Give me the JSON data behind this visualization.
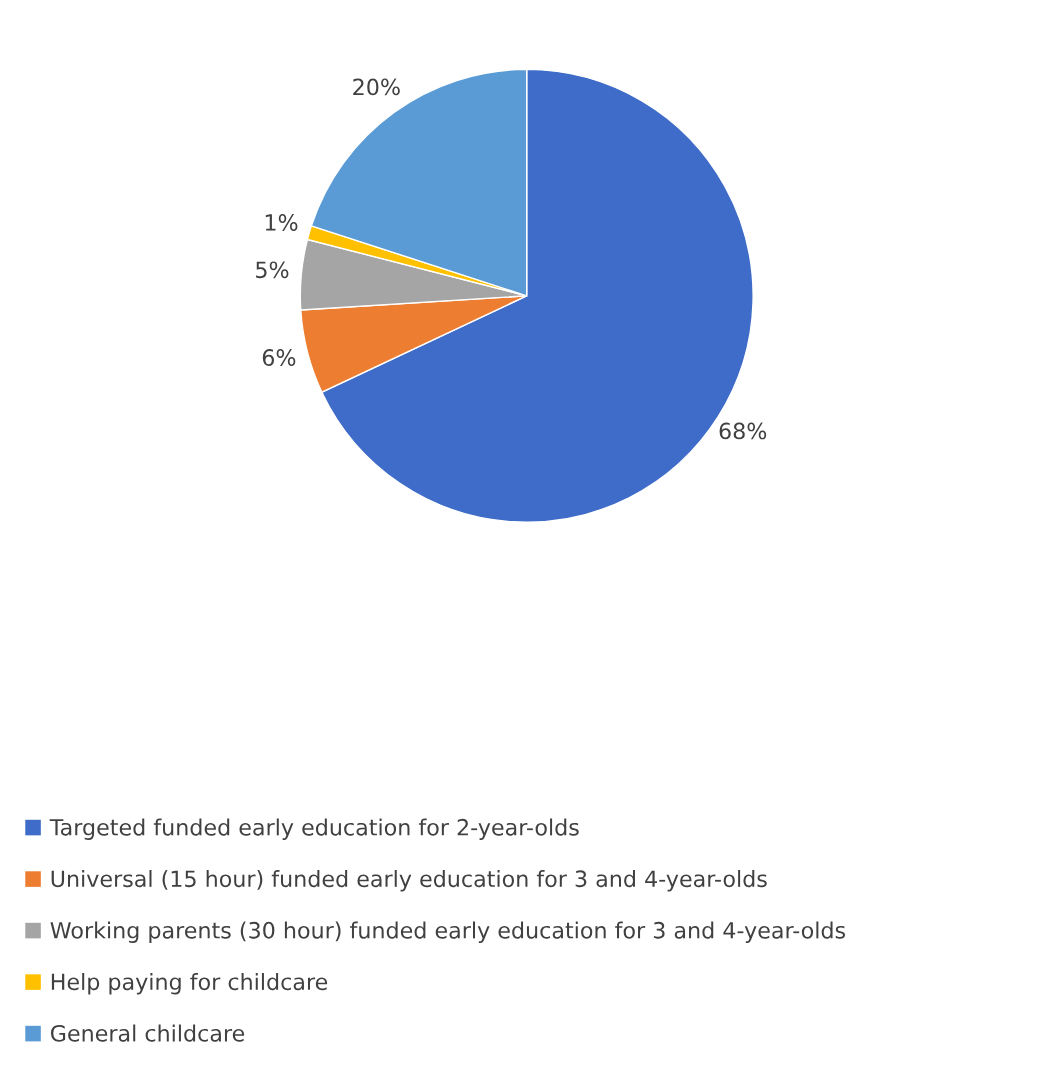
{
  "chart_data": {
    "type": "pie",
    "categories": [
      "Targeted funded early education for 2-year-olds",
      "Universal (15 hour) funded early education for 3 and 4-year-olds",
      "Working parents (30 hour) funded early education for 3 and 4-year-olds",
      "Help paying for childcare",
      "General childcare"
    ],
    "values": [
      68,
      6,
      5,
      1,
      20
    ],
    "value_labels": [
      "68%",
      "6%",
      "5%",
      "1%",
      "20%"
    ],
    "colors": [
      "#3f6cc8",
      "#ed7d31",
      "#a5a5a5",
      "#ffc000",
      "#5b9bd5"
    ],
    "legend": "bottom"
  }
}
